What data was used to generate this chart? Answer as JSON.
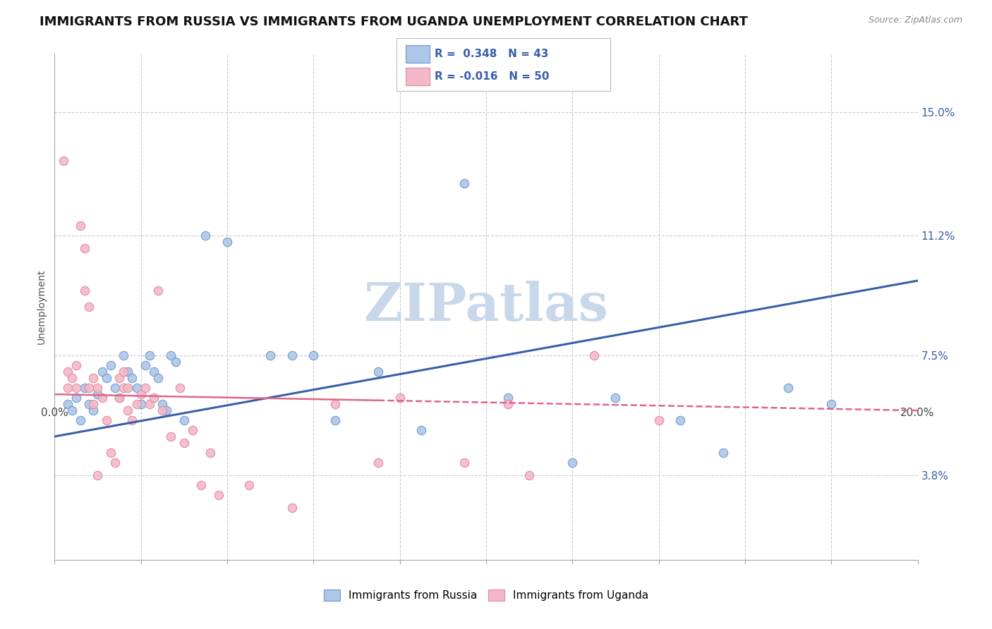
{
  "title": "IMMIGRANTS FROM RUSSIA VS IMMIGRANTS FROM UGANDA UNEMPLOYMENT CORRELATION CHART",
  "source": "Source: ZipAtlas.com",
  "ylabel": "Unemployment",
  "yticks": [
    3.8,
    7.5,
    11.2,
    15.0
  ],
  "ytick_labels": [
    "3.8%",
    "7.5%",
    "11.2%",
    "15.0%"
  ],
  "xticks": [
    0.0,
    2.0,
    4.0,
    6.0,
    8.0,
    10.0,
    12.0,
    14.0,
    16.0,
    18.0,
    20.0
  ],
  "xtick_labels": [
    "0.0%",
    "",
    "",
    "",
    "",
    "",
    "",
    "",
    "",
    "",
    "20.0%"
  ],
  "xmin": 0.0,
  "xmax": 20.0,
  "ymin": 1.2,
  "ymax": 16.8,
  "russia_color": "#aec6e8",
  "russia_edge": "#6699cc",
  "uganda_color": "#f4b8c8",
  "uganda_edge": "#dd8899",
  "russia_line_color": "#3a5fa8",
  "uganda_line_color": "#dd6688",
  "legend_r_russia": "R =  0.348",
  "legend_n_russia": "N = 43",
  "legend_r_uganda": "R = -0.016",
  "legend_n_uganda": "N = 50",
  "watermark": "ZIPatlas",
  "watermark_color": "#c8d8ea",
  "russia_scatter_x": [
    0.3,
    0.4,
    0.5,
    0.6,
    0.7,
    0.8,
    0.9,
    1.0,
    1.1,
    1.2,
    1.3,
    1.4,
    1.5,
    1.6,
    1.7,
    1.8,
    1.9,
    2.0,
    2.1,
    2.2,
    2.3,
    2.4,
    2.5,
    2.6,
    2.7,
    2.8,
    3.0,
    3.5,
    4.0,
    5.0,
    5.5,
    6.0,
    6.5,
    7.5,
    8.5,
    10.5,
    13.0,
    14.5,
    17.0,
    18.0,
    12.0,
    15.5,
    9.5
  ],
  "russia_scatter_y": [
    6.0,
    5.8,
    6.2,
    5.5,
    6.5,
    6.0,
    5.8,
    6.3,
    7.0,
    6.8,
    7.2,
    6.5,
    6.2,
    7.5,
    7.0,
    6.8,
    6.5,
    6.0,
    7.2,
    7.5,
    7.0,
    6.8,
    6.0,
    5.8,
    7.5,
    7.3,
    5.5,
    11.2,
    11.0,
    7.5,
    7.5,
    7.5,
    5.5,
    7.0,
    5.2,
    6.2,
    6.2,
    5.5,
    6.5,
    6.0,
    4.2,
    4.5,
    12.8
  ],
  "uganda_scatter_x": [
    0.2,
    0.3,
    0.3,
    0.4,
    0.5,
    0.5,
    0.6,
    0.7,
    0.7,
    0.8,
    0.8,
    0.9,
    0.9,
    1.0,
    1.0,
    1.1,
    1.2,
    1.3,
    1.4,
    1.5,
    1.5,
    1.6,
    1.6,
    1.7,
    1.7,
    1.8,
    1.9,
    2.0,
    2.1,
    2.2,
    2.3,
    2.4,
    2.5,
    2.7,
    2.9,
    3.0,
    3.2,
    3.4,
    3.6,
    3.8,
    4.5,
    5.5,
    6.5,
    7.5,
    9.5,
    10.5,
    11.0,
    12.5,
    14.0,
    8.0
  ],
  "uganda_scatter_y": [
    13.5,
    7.0,
    6.5,
    6.8,
    7.2,
    6.5,
    11.5,
    10.8,
    9.5,
    9.0,
    6.5,
    6.8,
    6.0,
    6.5,
    3.8,
    6.2,
    5.5,
    4.5,
    4.2,
    6.2,
    6.8,
    7.0,
    6.5,
    6.5,
    5.8,
    5.5,
    6.0,
    6.3,
    6.5,
    6.0,
    6.2,
    9.5,
    5.8,
    5.0,
    6.5,
    4.8,
    5.2,
    3.5,
    4.5,
    3.2,
    3.5,
    2.8,
    6.0,
    4.2,
    4.2,
    6.0,
    3.8,
    7.5,
    5.5,
    6.2
  ],
  "russia_trend_x": [
    0.0,
    20.0
  ],
  "russia_trend_y": [
    5.0,
    9.8
  ],
  "uganda_trend_x": [
    0.0,
    20.0
  ],
  "uganda_trend_y": [
    6.3,
    5.8
  ],
  "marker_size": 80,
  "title_fontsize": 13,
  "axis_label_fontsize": 10,
  "tick_fontsize": 11
}
